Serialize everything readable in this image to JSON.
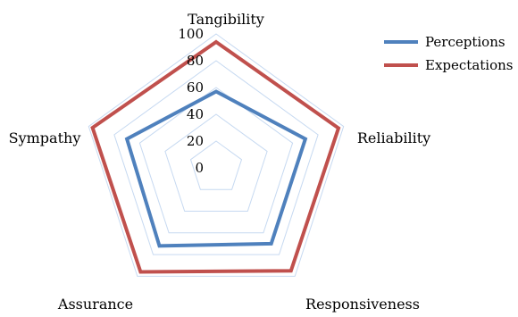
{
  "chart_data": {
    "type": "radar",
    "categories": [
      "Tangibility",
      "Reliability",
      "Responsiveness",
      "Assurance",
      "Sympathy"
    ],
    "series": [
      {
        "name": "Perceptions",
        "values": [
          57,
          70,
          70,
          72,
          70
        ],
        "color": "#4F81BD"
      },
      {
        "name": "Expectations",
        "values": [
          94,
          96,
          95,
          96,
          97
        ],
        "color": "#C0504D"
      }
    ],
    "ticks": [
      "0",
      "20",
      "40",
      "60",
      "80",
      "100"
    ],
    "rlim": [
      0,
      100
    ],
    "grid": true,
    "grid_color": "#C6D9F1",
    "legend": {
      "position": "top-right"
    }
  }
}
